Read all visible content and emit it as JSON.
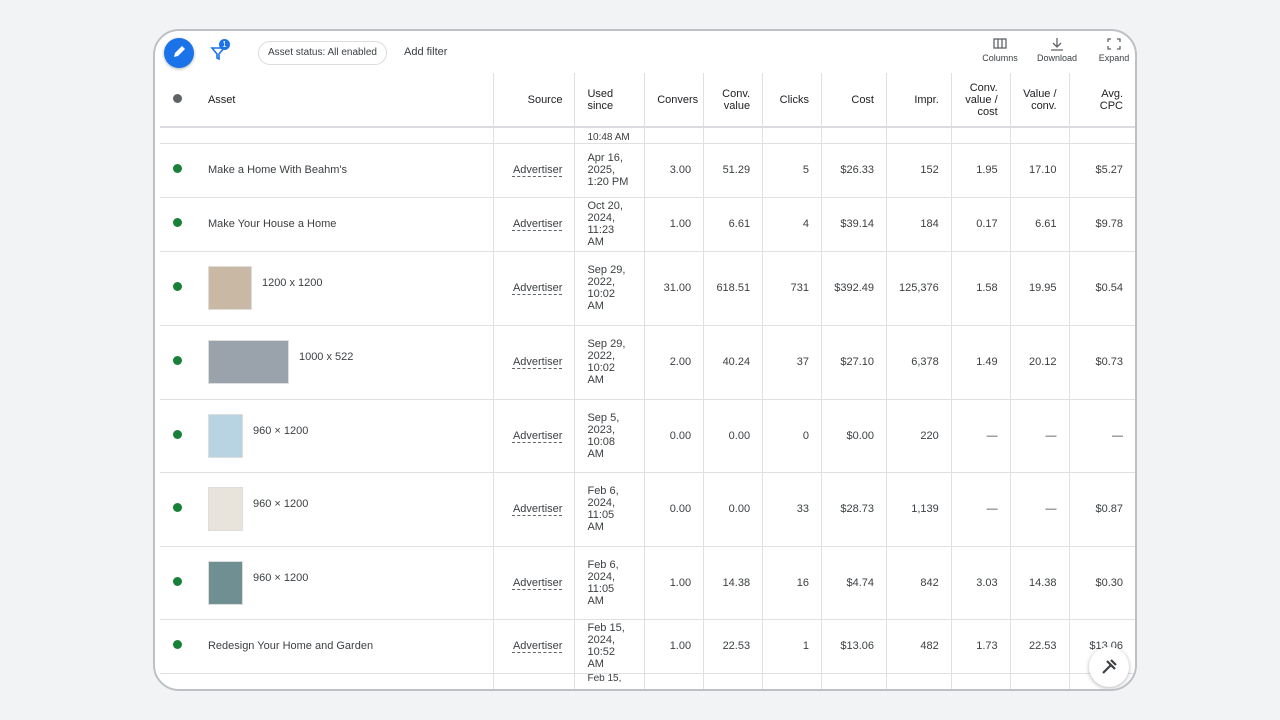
{
  "toolbar": {
    "filter_badge": "1",
    "chip": "Asset status: All enabled",
    "add_filter": "Add filter",
    "actions": [
      "Columns",
      "Download",
      "Expand"
    ]
  },
  "table": {
    "columns": [
      "Asset",
      "Source",
      "Used since",
      "Convers",
      "Conv. value",
      "Clicks",
      "Cost",
      "Impr.",
      "Conv. value / cost",
      "Value / conv.",
      "Avg. CPC"
    ],
    "partial_top": "10:48 AM",
    "partial_bottom": "Feb 15,",
    "rows": [
      [
        "Make a Home With Beahm's",
        "Advertiser",
        "Apr 16, 2025, 1:20 PM",
        "3.00",
        "51.29",
        "5",
        "$26.33",
        "152",
        "1.95",
        "17.10",
        "$5.27"
      ],
      [
        "Make Your House a Home",
        "Advertiser",
        "Oct 20, 2024, 11:23 AM",
        "1.00",
        "6.61",
        "4",
        "$39.14",
        "184",
        "0.17",
        "6.61",
        "$9.78"
      ],
      [
        "1200 x 1200",
        "Advertiser",
        "Sep 29, 2022, 10:02 AM",
        "31.00",
        "618.51",
        "731",
        "$392.49",
        "125,376",
        "1.58",
        "19.95",
        "$0.54"
      ],
      [
        "1000 x 522",
        "Advertiser",
        "Sep 29, 2022, 10:02 AM",
        "2.00",
        "40.24",
        "37",
        "$27.10",
        "6,378",
        "1.49",
        "20.12",
        "$0.73"
      ],
      [
        "960 × 1200",
        "Advertiser",
        "Sep 5, 2023, 10:08 AM",
        "0.00",
        "0.00",
        "0",
        "$0.00",
        "220",
        "—",
        "—",
        "—"
      ],
      [
        "960 × 1200",
        "Advertiser",
        "Feb 6, 2024, 11:05 AM",
        "0.00",
        "0.00",
        "33",
        "$28.73",
        "1,139",
        "—",
        "—",
        "$0.87"
      ],
      [
        "960 × 1200",
        "Advertiser",
        "Feb 6, 2024, 11:05 AM",
        "1.00",
        "14.38",
        "16",
        "$4.74",
        "842",
        "3.03",
        "14.38",
        "$0.30"
      ],
      [
        "Redesign Your Home and Garden",
        "Advertiser",
        "Feb 15, 2024, 10:52 AM",
        "1.00",
        "22.53",
        "1",
        "$13.06",
        "482",
        "1.73",
        "22.53",
        "$13.06"
      ]
    ]
  }
}
